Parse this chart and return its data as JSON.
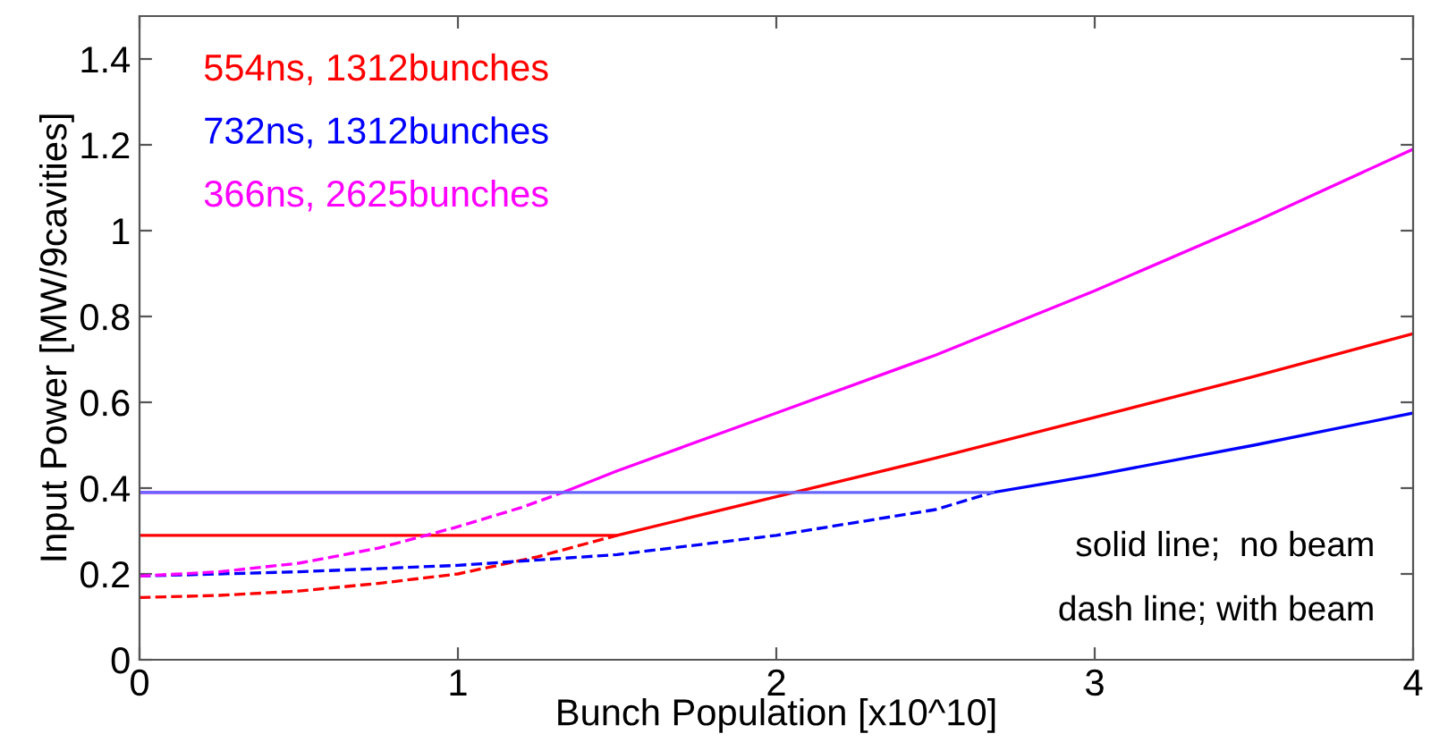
{
  "chart_data": {
    "type": "line",
    "xlabel": "Bunch Population [x10^10]",
    "ylabel": "Input Power [MW/9cavities]",
    "xlim": [
      0,
      4
    ],
    "ylim": [
      0,
      1.5
    ],
    "xticks": [
      0,
      1,
      2,
      3,
      4
    ],
    "yticks": [
      0,
      0.2,
      0.4,
      0.6,
      0.8,
      1,
      1.2,
      1.4
    ],
    "grid": false,
    "legend": false,
    "annotations": [
      "solid line;  no beam",
      "dash line; with beam"
    ],
    "series": [
      {
        "name": "554ns, 1312bunches",
        "color": "#ff0000",
        "line_style": "solid",
        "x": [
          0,
          1.5,
          2,
          2.5,
          3,
          3.5,
          4
        ],
        "values": [
          0.29,
          0.29,
          0.38,
          0.47,
          0.565,
          0.66,
          0.76
        ]
      },
      {
        "name": "732ns, 1312bunches",
        "color": "#0000ff",
        "line_style": "solid",
        "x": [
          2.68,
          3,
          3.5,
          4
        ],
        "values": [
          0.39,
          0.43,
          0.5,
          0.575
        ]
      },
      {
        "name": "366ns, 2625bunches",
        "color": "#ff00ff",
        "line_style": "solid",
        "x": [
          0,
          1.33,
          1.5,
          2,
          2.5,
          3,
          3.5,
          4
        ],
        "values": [
          0.39,
          0.39,
          0.44,
          0.575,
          0.71,
          0.86,
          1.02,
          1.19
        ]
      },
      {
        "color": "#ff0000",
        "line_style": "dashed",
        "x": [
          0,
          0.25,
          0.5,
          0.75,
          1,
          1.25,
          1.5
        ],
        "values": [
          0.145,
          0.15,
          0.16,
          0.178,
          0.2,
          0.24,
          0.29
        ]
      },
      {
        "color": "#0000ff",
        "line_style": "dashed",
        "x": [
          0,
          0.5,
          1,
          1.5,
          2,
          2.5,
          2.68
        ],
        "values": [
          0.195,
          0.205,
          0.22,
          0.245,
          0.29,
          0.35,
          0.39
        ]
      },
      {
        "color": "#ff00ff",
        "line_style": "dashed",
        "x": [
          0,
          0.25,
          0.5,
          0.75,
          1,
          1.2,
          1.33
        ],
        "values": [
          0.195,
          0.205,
          0.225,
          0.26,
          0.31,
          0.355,
          0.39
        ]
      },
      {
        "color": "#6666ff",
        "line_style": "solid",
        "x": [
          0,
          2.68
        ],
        "values": [
          0.39,
          0.39
        ]
      }
    ]
  }
}
